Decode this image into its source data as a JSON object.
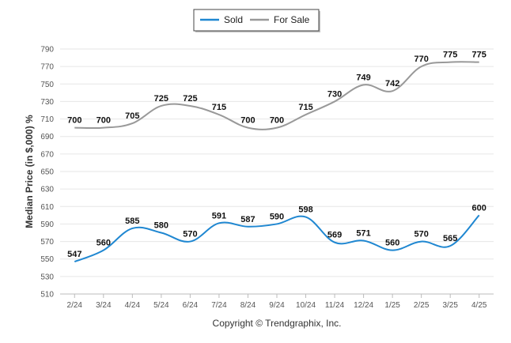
{
  "chart_data": {
    "type": "line",
    "ylabel": "Median Price (in $,000) %",
    "xlabel": "",
    "categories": [
      "2/24",
      "3/24",
      "4/24",
      "5/24",
      "6/24",
      "7/24",
      "8/24",
      "9/24",
      "10/24",
      "11/24",
      "12/24",
      "1/25",
      "2/25",
      "3/25",
      "4/25"
    ],
    "series": [
      {
        "name": "Sold",
        "color": "#1f87d1",
        "values": [
          547,
          560,
          585,
          580,
          570,
          591,
          587,
          590,
          598,
          569,
          571,
          560,
          570,
          565,
          600
        ]
      },
      {
        "name": "For Sale",
        "color": "#999999",
        "values": [
          700,
          700,
          705,
          725,
          725,
          715,
          700,
          700,
          715,
          730,
          749,
          742,
          770,
          775,
          775
        ]
      }
    ],
    "ylim": [
      510,
      790
    ],
    "yticks": [
      510,
      530,
      550,
      570,
      590,
      610,
      630,
      650,
      670,
      690,
      710,
      730,
      750,
      770,
      790
    ],
    "grid": true,
    "legend": "top-center",
    "data_labels": true
  },
  "footer": {
    "copyright": "Copyright © Trendgraphix, Inc."
  }
}
